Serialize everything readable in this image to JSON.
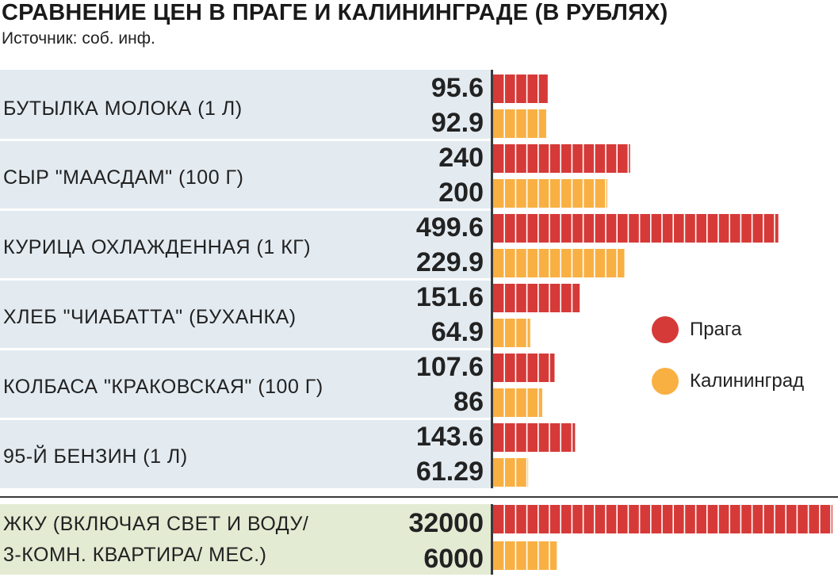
{
  "title": "СРАВНЕНИЕ ЦЕН В ПРАГЕ И КАЛИНИНГРАДЕ (В РУБЛЯХ)",
  "source": "Источник: соб. инф.",
  "colors": {
    "prague": "#d63a38",
    "kaliningrad": "#f9b043",
    "row_bg": "#e3ebf1",
    "housing_bg": "#e3ebd3"
  },
  "legend": [
    {
      "label": "Прага",
      "color": "#d63a38"
    },
    {
      "label": "Калининград",
      "color": "#f9b043"
    }
  ],
  "chart_data": {
    "type": "bar",
    "orientation": "horizontal",
    "title": "СРАВНЕНИЕ ЦЕН В ПРАГЕ И КАЛИНИНГРАДЕ (В РУБЛЯХ)",
    "categories": [
      "БУТЫЛКА МОЛОКА (1 Л)",
      "СЫР \"МААСДАМ\" (100 Г)",
      "КУРИЦА ОХЛАЖДЕННАЯ (1 КГ)",
      "ХЛЕБ \"ЧИАБАТТА\" (БУХАНКА)",
      "КОЛБАСА \"КРАКОВСКАЯ\" (100 Г)",
      "95-Й БЕНЗИН (1 Л)"
    ],
    "series": [
      {
        "name": "Прага",
        "values": [
          "95.6",
          "240",
          "499.6",
          "151.6",
          "107.6",
          "143.6"
        ]
      },
      {
        "name": "Калининград",
        "values": [
          "92.9",
          "200",
          "229.9",
          "64.9",
          "86",
          "61.29"
        ]
      }
    ],
    "housing": {
      "label_lines": [
        "ЖКУ (ВКЛЮЧАЯ СВЕТ И ВОДУ/",
        "3-КОМН. КВАРТИРА/ МЕС.)"
      ],
      "series": [
        {
          "name": "Прага",
          "value": "32000"
        },
        {
          "name": "Калининград",
          "value": "6000"
        }
      ]
    },
    "legend_position": "right"
  }
}
